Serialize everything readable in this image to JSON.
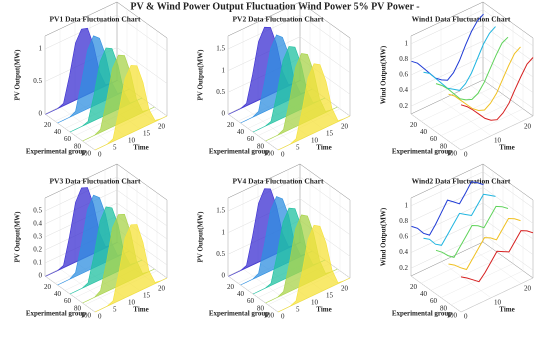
{
  "title": "PV & Wind Power Output Fluctuation Wind Power 5% PV Power -",
  "chart_data": [
    {
      "type": "area3d",
      "title": "PV1 Data Fluctuation Chart",
      "xlabel": "Time",
      "ylabel": "Experimental group",
      "zlabel": "PV Output(MW)",
      "x": [
        0,
        2,
        4,
        6,
        8,
        10,
        12,
        14,
        16,
        18,
        20,
        22,
        24
      ],
      "xlim": [
        0,
        24
      ],
      "xticks": [
        0,
        5,
        10,
        15,
        20
      ],
      "ylim": [
        0,
        100
      ],
      "yticks": [
        20,
        40,
        60,
        80,
        100
      ],
      "zlim": [
        0,
        1.2
      ],
      "zticks": [
        0,
        0.5,
        1
      ],
      "series": [
        {
          "y": 1,
          "color": "#3b2fd1",
          "values": [
            0,
            0,
            0,
            0.04,
            0.42,
            0.88,
            1.05,
            1.02,
            0.72,
            0.26,
            0.02,
            0,
            0
          ]
        },
        {
          "y": 25,
          "color": "#2f8fe0",
          "values": [
            0,
            0,
            0,
            0.05,
            0.45,
            0.9,
            1.08,
            1.0,
            0.7,
            0.24,
            0.02,
            0,
            0
          ]
        },
        {
          "y": 50,
          "color": "#1fc0a0",
          "values": [
            0,
            0,
            0,
            0.03,
            0.4,
            0.86,
            1.03,
            0.98,
            0.68,
            0.22,
            0.01,
            0,
            0
          ]
        },
        {
          "y": 75,
          "color": "#a8d34a",
          "values": [
            0,
            0,
            0,
            0.05,
            0.44,
            0.9,
            1.06,
            1.01,
            0.7,
            0.25,
            0.02,
            0,
            0
          ]
        },
        {
          "y": 100,
          "color": "#f5e23a",
          "values": [
            0,
            0,
            0,
            0.04,
            0.43,
            0.88,
            1.04,
            0.99,
            0.69,
            0.23,
            0.02,
            0,
            0
          ]
        }
      ]
    },
    {
      "type": "area3d",
      "title": "PV2 Data Fluctuation Chart",
      "xlabel": "Time",
      "ylabel": "Experimental group",
      "zlabel": "PV Output(MW)",
      "x": [
        0,
        2,
        4,
        6,
        8,
        10,
        12,
        14,
        16,
        18,
        20,
        22,
        24
      ],
      "xlim": [
        0,
        24
      ],
      "xticks": [
        0,
        5,
        10,
        15,
        20
      ],
      "ylim": [
        0,
        100
      ],
      "yticks": [
        20,
        40,
        60,
        80,
        100
      ],
      "zlim": [
        0,
        1.8
      ],
      "zticks": [
        0,
        0.5,
        1,
        1.5
      ],
      "series": [
        {
          "y": 1,
          "color": "#3b2fd1",
          "values": [
            0,
            0,
            0,
            0.06,
            0.65,
            1.35,
            1.62,
            1.55,
            1.1,
            0.4,
            0.03,
            0,
            0
          ]
        },
        {
          "y": 25,
          "color": "#2f8fe0",
          "values": [
            0,
            0,
            0,
            0.07,
            0.68,
            1.38,
            1.64,
            1.52,
            1.08,
            0.38,
            0.03,
            0,
            0
          ]
        },
        {
          "y": 50,
          "color": "#1fc0a0",
          "values": [
            0,
            0,
            0,
            0.05,
            0.62,
            1.32,
            1.58,
            1.5,
            1.05,
            0.36,
            0.02,
            0,
            0
          ]
        },
        {
          "y": 75,
          "color": "#a8d34a",
          "values": [
            0,
            0,
            0,
            0.07,
            0.66,
            1.37,
            1.63,
            1.54,
            1.09,
            0.39,
            0.03,
            0,
            0
          ]
        },
        {
          "y": 100,
          "color": "#f5e23a",
          "values": [
            0,
            0,
            0,
            0.06,
            0.64,
            1.34,
            1.6,
            1.51,
            1.06,
            0.37,
            0.02,
            0,
            0
          ]
        }
      ]
    },
    {
      "type": "line3d",
      "title": "Wind1 Data Fluctuation Chart",
      "xlabel": "Time",
      "ylabel": "Experimental group",
      "zlabel": "Wind Output(MW)",
      "x": [
        0,
        2,
        4,
        6,
        8,
        10,
        12,
        14,
        16,
        18,
        20,
        22,
        24
      ],
      "xlim": [
        0,
        24
      ],
      "xticks": [
        0,
        10,
        20
      ],
      "ylim": [
        0,
        100
      ],
      "yticks": [
        20,
        40,
        60,
        80,
        100
      ],
      "zlim": [
        0.1,
        1.1
      ],
      "zticks": [
        0.2,
        0.4,
        0.6,
        0.8,
        1
      ],
      "series": [
        {
          "y": 1,
          "color": "#1f3bd6",
          "values": [
            0.78,
            0.72,
            0.62,
            0.52,
            0.42,
            0.36,
            0.32,
            0.38,
            0.5,
            0.66,
            0.8,
            0.9,
            0.95
          ]
        },
        {
          "y": 25,
          "color": "#1fb5e0",
          "values": [
            0.75,
            0.7,
            0.6,
            0.5,
            0.4,
            0.35,
            0.3,
            0.35,
            0.45,
            0.6,
            0.75,
            0.85,
            0.9
          ]
        },
        {
          "y": 50,
          "color": "#5fd35a",
          "values": [
            0.72,
            0.66,
            0.58,
            0.48,
            0.38,
            0.33,
            0.3,
            0.34,
            0.44,
            0.58,
            0.72,
            0.84,
            0.88
          ]
        },
        {
          "y": 75,
          "color": "#f0c020",
          "values": [
            0.7,
            0.64,
            0.55,
            0.46,
            0.37,
            0.31,
            0.28,
            0.33,
            0.42,
            0.56,
            0.7,
            0.82,
            0.87
          ]
        },
        {
          "y": 100,
          "color": "#d61f1f",
          "values": [
            0.68,
            0.62,
            0.54,
            0.45,
            0.36,
            0.3,
            0.27,
            0.32,
            0.41,
            0.55,
            0.68,
            0.8,
            0.85
          ]
        }
      ]
    },
    {
      "type": "area3d",
      "title": "PV3 Data Fluctuation Chart",
      "xlabel": "Time",
      "ylabel": "Experimental group",
      "zlabel": "PV Output(MW)",
      "x": [
        0,
        2,
        4,
        6,
        8,
        10,
        12,
        14,
        16,
        18,
        20,
        22,
        24
      ],
      "xlim": [
        0,
        24
      ],
      "xticks": [
        0,
        5,
        10,
        15,
        20
      ],
      "ylim": [
        0,
        100
      ],
      "yticks": [
        20,
        40,
        60,
        80,
        100
      ],
      "zlim": [
        0,
        0.6
      ],
      "zticks": [
        0,
        0.1,
        0.2,
        0.3,
        0.4,
        0.5
      ],
      "series": [
        {
          "y": 1,
          "color": "#3b2fd1",
          "values": [
            0,
            0,
            0,
            0.02,
            0.22,
            0.46,
            0.55,
            0.53,
            0.38,
            0.14,
            0.01,
            0,
            0
          ]
        },
        {
          "y": 25,
          "color": "#2f8fe0",
          "values": [
            0,
            0,
            0,
            0.03,
            0.23,
            0.47,
            0.56,
            0.52,
            0.37,
            0.13,
            0.01,
            0,
            0
          ]
        },
        {
          "y": 50,
          "color": "#1fc0a0",
          "values": [
            0,
            0,
            0,
            0.02,
            0.21,
            0.45,
            0.54,
            0.51,
            0.36,
            0.12,
            0.01,
            0,
            0
          ]
        },
        {
          "y": 75,
          "color": "#a8d34a",
          "values": [
            0,
            0,
            0,
            0.03,
            0.23,
            0.47,
            0.55,
            0.53,
            0.37,
            0.13,
            0.01,
            0,
            0
          ]
        },
        {
          "y": 100,
          "color": "#f5e23a",
          "values": [
            0,
            0,
            0,
            0.02,
            0.22,
            0.46,
            0.54,
            0.52,
            0.36,
            0.12,
            0.01,
            0,
            0
          ]
        }
      ]
    },
    {
      "type": "area3d",
      "title": "PV4 Data Fluctuation Chart",
      "xlabel": "Time",
      "ylabel": "Experimental group",
      "zlabel": "PV Output(MW)",
      "x": [
        0,
        2,
        4,
        6,
        8,
        10,
        12,
        14,
        16,
        18,
        20,
        22,
        24
      ],
      "xlim": [
        0,
        24
      ],
      "xticks": [
        0,
        5,
        10,
        15,
        20
      ],
      "ylim": [
        0,
        100
      ],
      "yticks": [
        20,
        40,
        60,
        80,
        100
      ],
      "zlim": [
        0,
        1.8
      ],
      "zticks": [
        0,
        0.5,
        1,
        1.5
      ],
      "series": [
        {
          "y": 1,
          "color": "#3b2fd1",
          "values": [
            0,
            0,
            0,
            0.06,
            0.66,
            1.36,
            1.63,
            1.56,
            1.1,
            0.41,
            0.03,
            0,
            0
          ]
        },
        {
          "y": 25,
          "color": "#2f8fe0",
          "values": [
            0,
            0,
            0,
            0.07,
            0.69,
            1.39,
            1.65,
            1.53,
            1.09,
            0.39,
            0.03,
            0,
            0
          ]
        },
        {
          "y": 50,
          "color": "#1fc0a0",
          "values": [
            0,
            0,
            0,
            0.05,
            0.63,
            1.33,
            1.59,
            1.51,
            1.06,
            0.37,
            0.02,
            0,
            0
          ]
        },
        {
          "y": 75,
          "color": "#a8d34a",
          "values": [
            0,
            0,
            0,
            0.07,
            0.67,
            1.38,
            1.64,
            1.55,
            1.1,
            0.4,
            0.03,
            0,
            0
          ]
        },
        {
          "y": 100,
          "color": "#f5e23a",
          "values": [
            0,
            0,
            0,
            0.06,
            0.65,
            1.35,
            1.61,
            1.52,
            1.07,
            0.38,
            0.02,
            0,
            0
          ]
        }
      ]
    },
    {
      "type": "line3d",
      "title": "Wind2 Data Fluctuation Chart",
      "xlabel": "Time",
      "ylabel": "Experimental group",
      "zlabel": "Wind Output(MW)",
      "x": [
        0,
        2,
        4,
        6,
        8,
        10,
        12,
        14,
        16,
        18,
        20,
        22,
        24
      ],
      "xlim": [
        0,
        24
      ],
      "xticks": [
        0,
        10,
        20
      ],
      "ylim": [
        0,
        100
      ],
      "yticks": [
        20,
        40,
        60,
        80,
        100
      ],
      "zlim": [
        0.1,
        1.1
      ],
      "zticks": [
        0.2,
        0.4,
        0.6,
        0.8,
        1
      ],
      "series": [
        {
          "y": 1,
          "color": "#1f3bd6",
          "values": [
            0.74,
            0.68,
            0.58,
            0.52,
            0.62,
            0.74,
            0.86,
            0.8,
            0.74,
            0.84,
            0.95,
            0.9,
            0.84
          ]
        },
        {
          "y": 25,
          "color": "#1fb5e0",
          "values": [
            0.7,
            0.65,
            0.55,
            0.5,
            0.6,
            0.7,
            0.8,
            0.75,
            0.7,
            0.8,
            0.9,
            0.85,
            0.8
          ]
        },
        {
          "y": 50,
          "color": "#5fd35a",
          "values": [
            0.66,
            0.6,
            0.52,
            0.46,
            0.56,
            0.66,
            0.76,
            0.72,
            0.66,
            0.76,
            0.86,
            0.82,
            0.76
          ]
        },
        {
          "y": 75,
          "color": "#f0c020",
          "values": [
            0.6,
            0.55,
            0.48,
            0.42,
            0.52,
            0.62,
            0.72,
            0.68,
            0.62,
            0.72,
            0.82,
            0.78,
            0.72
          ]
        },
        {
          "y": 100,
          "color": "#d61f1f",
          "values": [
            0.55,
            0.5,
            0.44,
            0.38,
            0.46,
            0.56,
            0.66,
            0.62,
            0.58,
            0.68,
            0.78,
            0.74,
            0.68
          ]
        }
      ]
    }
  ]
}
